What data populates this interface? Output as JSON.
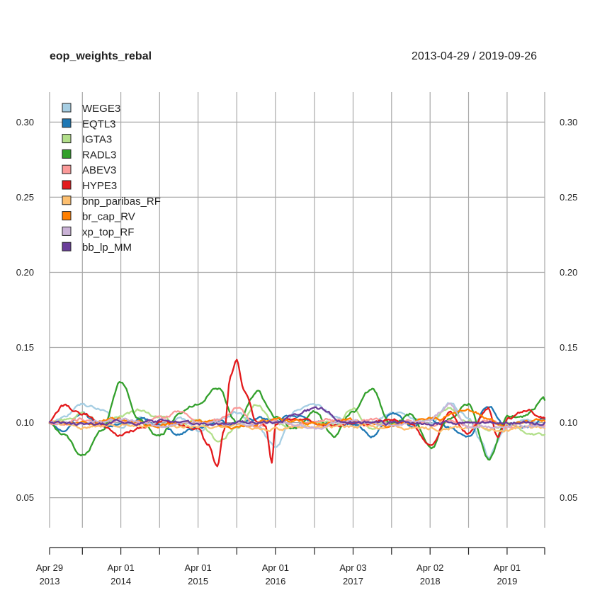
{
  "chart_data": {
    "type": "line",
    "title": "eop_weights_rebal",
    "date_range": "2013-04-29 / 2019-09-26",
    "x_start": "2013-04-29",
    "x_end": "2019-09-26",
    "ylim": [
      0.03,
      0.32
    ],
    "y_ticks": [
      0.05,
      0.1,
      0.15,
      0.2,
      0.25,
      0.3
    ],
    "y_tick_labels": [
      "0.05",
      "0.10",
      "0.15",
      "0.20",
      "0.25",
      "0.30"
    ],
    "x_grid_dates": [
      "2013-04-29",
      "2013-10-01",
      "2014-04-01",
      "2014-10-01",
      "2015-04-01",
      "2015-10-01",
      "2016-04-01",
      "2016-10-03",
      "2017-04-03",
      "2017-10-02",
      "2018-04-02",
      "2018-10-01",
      "2019-04-01",
      "2019-09-26"
    ],
    "x_tick_labels": [
      {
        "date": "2013-04-29",
        "line1": "Apr 29",
        "line2": "2013"
      },
      {
        "date": "2014-04-01",
        "line1": "Apr 01",
        "line2": "2014"
      },
      {
        "date": "2015-04-01",
        "line1": "Apr 01",
        "line2": "2015"
      },
      {
        "date": "2016-04-01",
        "line1": "Apr 01",
        "line2": "2016"
      },
      {
        "date": "2017-04-03",
        "line1": "Apr 03",
        "line2": "2017"
      },
      {
        "date": "2018-04-02",
        "line1": "Apr 02",
        "line2": "2018"
      },
      {
        "date": "2019-04-01",
        "line1": "Apr 01",
        "line2": "2019"
      }
    ],
    "grid": true,
    "legend_position": "top-left",
    "series": [
      {
        "name": "WEGE3",
        "color": "#a6cee3",
        "points": [
          [
            "2013-04-29",
            0.1
          ],
          [
            "2013-07-01",
            0.104
          ],
          [
            "2013-10-01",
            0.112
          ],
          [
            "2014-01-02",
            0.108
          ],
          [
            "2014-04-01",
            0.097
          ],
          [
            "2014-07-01",
            0.103
          ],
          [
            "2014-10-01",
            0.099
          ],
          [
            "2015-01-02",
            0.102
          ],
          [
            "2015-04-01",
            0.095
          ],
          [
            "2015-07-01",
            0.101
          ],
          [
            "2015-10-01",
            0.106
          ],
          [
            "2016-01-04",
            0.097
          ],
          [
            "2016-04-01",
            0.083
          ],
          [
            "2016-07-01",
            0.108
          ],
          [
            "2016-10-03",
            0.111
          ],
          [
            "2017-01-02",
            0.104
          ],
          [
            "2017-04-03",
            0.098
          ],
          [
            "2017-07-03",
            0.101
          ],
          [
            "2017-10-02",
            0.106
          ],
          [
            "2018-01-02",
            0.103
          ],
          [
            "2018-04-02",
            0.098
          ],
          [
            "2018-07-02",
            0.112
          ],
          [
            "2018-10-01",
            0.104
          ],
          [
            "2018-12-03",
            0.088
          ],
          [
            "2019-01-02",
            0.079
          ],
          [
            "2019-04-01",
            0.098
          ],
          [
            "2019-07-01",
            0.102
          ],
          [
            "2019-09-26",
            0.101
          ]
        ]
      },
      {
        "name": "EQTL3",
        "color": "#1f78b4",
        "points": [
          [
            "2013-04-29",
            0.1
          ],
          [
            "2013-07-01",
            0.095
          ],
          [
            "2013-10-01",
            0.107
          ],
          [
            "2014-01-02",
            0.097
          ],
          [
            "2014-04-01",
            0.099
          ],
          [
            "2014-07-01",
            0.103
          ],
          [
            "2014-10-01",
            0.098
          ],
          [
            "2015-01-02",
            0.092
          ],
          [
            "2015-04-01",
            0.097
          ],
          [
            "2015-07-01",
            0.1
          ],
          [
            "2015-10-01",
            0.099
          ],
          [
            "2016-01-04",
            0.103
          ],
          [
            "2016-04-01",
            0.101
          ],
          [
            "2016-07-01",
            0.105
          ],
          [
            "2016-10-03",
            0.101
          ],
          [
            "2017-01-02",
            0.098
          ],
          [
            "2017-04-03",
            0.1
          ],
          [
            "2017-07-03",
            0.091
          ],
          [
            "2017-10-02",
            0.106
          ],
          [
            "2018-01-02",
            0.098
          ],
          [
            "2018-04-02",
            0.102
          ],
          [
            "2018-07-02",
            0.096
          ],
          [
            "2018-10-01",
            0.092
          ],
          [
            "2019-01-02",
            0.112
          ],
          [
            "2019-04-01",
            0.098
          ],
          [
            "2019-07-01",
            0.097
          ],
          [
            "2019-09-26",
            0.102
          ]
        ]
      },
      {
        "name": "IGTA3",
        "color": "#b2df8a",
        "points": [
          [
            "2013-04-29",
            0.1
          ],
          [
            "2013-07-01",
            0.101
          ],
          [
            "2013-10-01",
            0.106
          ],
          [
            "2014-01-02",
            0.099
          ],
          [
            "2014-04-01",
            0.103
          ],
          [
            "2014-07-01",
            0.108
          ],
          [
            "2014-10-01",
            0.104
          ],
          [
            "2015-01-02",
            0.098
          ],
          [
            "2015-04-01",
            0.103
          ],
          [
            "2015-07-01",
            0.088
          ],
          [
            "2015-10-01",
            0.096
          ],
          [
            "2016-01-04",
            0.112
          ],
          [
            "2016-04-01",
            0.1
          ],
          [
            "2016-07-01",
            0.097
          ],
          [
            "2016-10-03",
            0.101
          ],
          [
            "2017-01-02",
            0.099
          ],
          [
            "2017-04-03",
            0.109
          ],
          [
            "2017-07-03",
            0.096
          ],
          [
            "2017-10-02",
            0.102
          ],
          [
            "2018-01-02",
            0.099
          ],
          [
            "2018-04-02",
            0.104
          ],
          [
            "2018-07-02",
            0.11
          ],
          [
            "2018-10-01",
            0.101
          ],
          [
            "2019-01-02",
            0.096
          ],
          [
            "2019-04-01",
            0.099
          ],
          [
            "2019-07-01",
            0.094
          ],
          [
            "2019-09-26",
            0.092
          ]
        ]
      },
      {
        "name": "RADL3",
        "color": "#33a02c",
        "points": [
          [
            "2013-04-29",
            0.1
          ],
          [
            "2013-07-01",
            0.092
          ],
          [
            "2013-10-01",
            0.078
          ],
          [
            "2014-01-02",
            0.094
          ],
          [
            "2014-04-01",
            0.127
          ],
          [
            "2014-07-01",
            0.102
          ],
          [
            "2014-10-01",
            0.091
          ],
          [
            "2015-01-02",
            0.105
          ],
          [
            "2015-04-01",
            0.112
          ],
          [
            "2015-07-01",
            0.124
          ],
          [
            "2015-10-01",
            0.1
          ],
          [
            "2016-01-04",
            0.121
          ],
          [
            "2016-04-01",
            0.103
          ],
          [
            "2016-07-01",
            0.096
          ],
          [
            "2016-10-03",
            0.108
          ],
          [
            "2017-01-02",
            0.09
          ],
          [
            "2017-04-03",
            0.108
          ],
          [
            "2017-07-03",
            0.122
          ],
          [
            "2017-10-02",
            0.097
          ],
          [
            "2018-01-02",
            0.105
          ],
          [
            "2018-04-02",
            0.082
          ],
          [
            "2018-07-02",
            0.102
          ],
          [
            "2018-10-01",
            0.112
          ],
          [
            "2019-01-02",
            0.076
          ],
          [
            "2019-04-01",
            0.104
          ],
          [
            "2019-07-01",
            0.105
          ],
          [
            "2019-09-26",
            0.115
          ]
        ]
      },
      {
        "name": "ABEV3",
        "color": "#fb9a99",
        "points": [
          [
            "2013-04-29",
            0.1
          ],
          [
            "2013-07-01",
            0.099
          ],
          [
            "2013-10-01",
            0.102
          ],
          [
            "2014-01-02",
            0.098
          ],
          [
            "2014-04-01",
            0.101
          ],
          [
            "2014-07-01",
            0.1
          ],
          [
            "2014-10-01",
            0.103
          ],
          [
            "2015-01-02",
            0.107
          ],
          [
            "2015-04-01",
            0.099
          ],
          [
            "2015-07-01",
            0.102
          ],
          [
            "2015-10-01",
            0.11
          ],
          [
            "2016-01-04",
            0.097
          ],
          [
            "2016-04-01",
            0.101
          ],
          [
            "2016-07-01",
            0.098
          ],
          [
            "2016-10-03",
            0.1
          ],
          [
            "2017-01-02",
            0.102
          ],
          [
            "2017-04-03",
            0.099
          ],
          [
            "2017-07-03",
            0.101
          ],
          [
            "2017-10-02",
            0.097
          ],
          [
            "2018-01-02",
            0.101
          ],
          [
            "2018-04-02",
            0.099
          ],
          [
            "2018-07-02",
            0.102
          ],
          [
            "2018-10-01",
            0.098
          ],
          [
            "2019-01-02",
            0.101
          ],
          [
            "2019-04-01",
            0.097
          ],
          [
            "2019-07-01",
            0.1
          ],
          [
            "2019-09-26",
            0.098
          ]
        ]
      },
      {
        "name": "HYPE3",
        "color": "#e31a1c",
        "points": [
          [
            "2013-04-29",
            0.1
          ],
          [
            "2013-07-01",
            0.111
          ],
          [
            "2013-10-01",
            0.106
          ],
          [
            "2014-01-02",
            0.098
          ],
          [
            "2014-04-01",
            0.091
          ],
          [
            "2014-07-01",
            0.096
          ],
          [
            "2014-10-01",
            0.101
          ],
          [
            "2015-01-02",
            0.099
          ],
          [
            "2015-04-01",
            0.097
          ],
          [
            "2015-05-15",
            0.086
          ],
          [
            "2015-07-01",
            0.07
          ],
          [
            "2015-08-03",
            0.095
          ],
          [
            "2015-09-01",
            0.13
          ],
          [
            "2015-10-01",
            0.14
          ],
          [
            "2015-11-02",
            0.122
          ],
          [
            "2016-01-04",
            0.101
          ],
          [
            "2016-02-15",
            0.098
          ],
          [
            "2016-03-15",
            0.075
          ],
          [
            "2016-04-01",
            0.1
          ],
          [
            "2016-07-01",
            0.103
          ],
          [
            "2016-10-03",
            0.101
          ],
          [
            "2017-01-02",
            0.098
          ],
          [
            "2017-04-03",
            0.1
          ],
          [
            "2017-07-03",
            0.099
          ],
          [
            "2017-10-02",
            0.103
          ],
          [
            "2018-01-02",
            0.099
          ],
          [
            "2018-04-02",
            0.086
          ],
          [
            "2018-07-02",
            0.107
          ],
          [
            "2018-10-01",
            0.094
          ],
          [
            "2019-01-02",
            0.11
          ],
          [
            "2019-02-15",
            0.091
          ],
          [
            "2019-04-01",
            0.103
          ],
          [
            "2019-07-01",
            0.109
          ],
          [
            "2019-09-26",
            0.103
          ]
        ]
      },
      {
        "name": "bnp_paribas_RF",
        "color": "#fdbf6f",
        "points": [
          [
            "2013-04-29",
            0.1
          ],
          [
            "2013-10-01",
            0.097
          ],
          [
            "2014-04-01",
            0.099
          ],
          [
            "2014-10-01",
            0.098
          ],
          [
            "2015-04-01",
            0.097
          ],
          [
            "2015-10-01",
            0.099
          ],
          [
            "2016-04-01",
            0.096
          ],
          [
            "2016-10-03",
            0.098
          ],
          [
            "2017-04-03",
            0.097
          ],
          [
            "2017-10-02",
            0.098
          ],
          [
            "2018-04-02",
            0.096
          ],
          [
            "2018-10-01",
            0.097
          ],
          [
            "2019-04-01",
            0.096
          ],
          [
            "2019-09-26",
            0.096
          ]
        ]
      },
      {
        "name": "br_cap_RV",
        "color": "#ff7f00",
        "points": [
          [
            "2013-04-29",
            0.1
          ],
          [
            "2013-10-01",
            0.099
          ],
          [
            "2014-04-01",
            0.102
          ],
          [
            "2014-10-01",
            0.098
          ],
          [
            "2015-04-01",
            0.101
          ],
          [
            "2015-10-01",
            0.097
          ],
          [
            "2016-04-01",
            0.103
          ],
          [
            "2016-10-03",
            0.099
          ],
          [
            "2017-04-03",
            0.101
          ],
          [
            "2017-10-02",
            0.098
          ],
          [
            "2018-04-02",
            0.102
          ],
          [
            "2018-10-01",
            0.108
          ],
          [
            "2019-04-01",
            0.099
          ],
          [
            "2019-09-26",
            0.101
          ]
        ]
      },
      {
        "name": "xp_top_RF",
        "color": "#cab2d6",
        "points": [
          [
            "2013-04-29",
            0.1
          ],
          [
            "2013-10-01",
            0.099
          ],
          [
            "2014-04-01",
            0.101
          ],
          [
            "2014-10-01",
            0.098
          ],
          [
            "2015-04-01",
            0.1
          ],
          [
            "2015-10-01",
            0.099
          ],
          [
            "2016-04-01",
            0.101
          ],
          [
            "2016-10-03",
            0.098
          ],
          [
            "2017-04-03",
            0.1
          ],
          [
            "2017-10-02",
            0.099
          ],
          [
            "2018-04-02",
            0.101
          ],
          [
            "2018-07-02",
            0.112
          ],
          [
            "2018-10-01",
            0.097
          ],
          [
            "2019-04-01",
            0.098
          ],
          [
            "2019-09-26",
            0.097
          ]
        ]
      },
      {
        "name": "bb_lp_MM",
        "color": "#6a3d9a",
        "points": [
          [
            "2013-04-29",
            0.1
          ],
          [
            "2013-10-01",
            0.099
          ],
          [
            "2014-04-01",
            0.1
          ],
          [
            "2014-10-01",
            0.101
          ],
          [
            "2015-04-01",
            0.099
          ],
          [
            "2015-10-01",
            0.1
          ],
          [
            "2016-04-01",
            0.101
          ],
          [
            "2016-10-03",
            0.109
          ],
          [
            "2017-04-03",
            0.1
          ],
          [
            "2017-10-02",
            0.099
          ],
          [
            "2018-04-02",
            0.1
          ],
          [
            "2018-10-01",
            0.099
          ],
          [
            "2019-04-01",
            0.1
          ],
          [
            "2019-09-26",
            0.1
          ]
        ]
      }
    ]
  }
}
